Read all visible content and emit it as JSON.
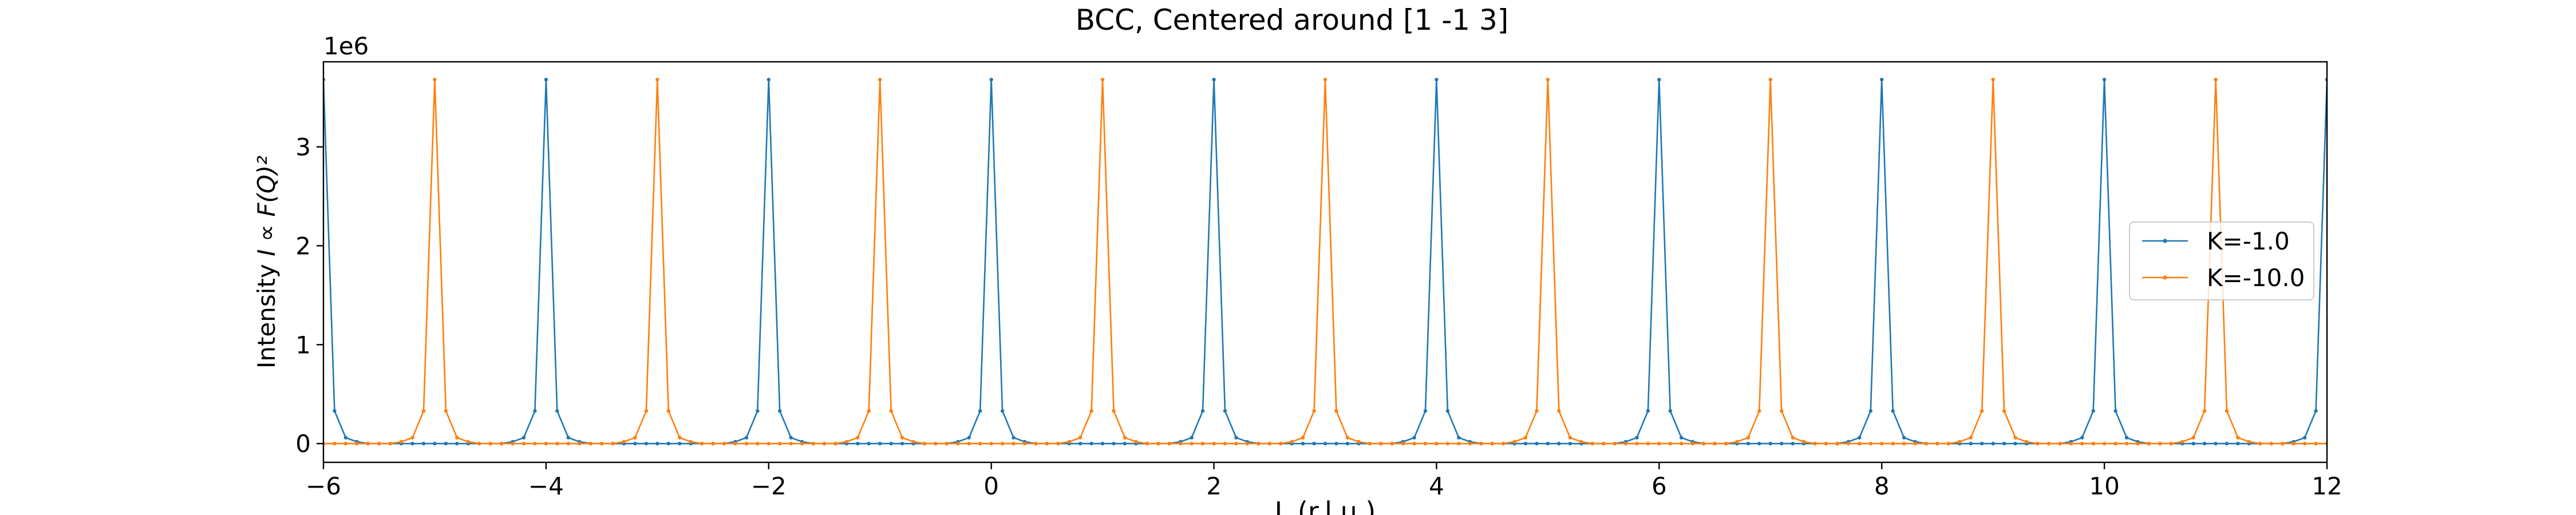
{
  "chart_data": {
    "type": "line",
    "title": "BCC, Centered around [1 -1 3]",
    "xlabel": "L (r.l.u.)",
    "ylabel_text": "Intensity ",
    "ylabel_math": "I ∝ F(Q)²",
    "y_offset_label": "1e6",
    "xlim": [
      -6,
      12
    ],
    "ylim": [
      -0.19,
      3.86
    ],
    "y_scale_factor": 1000000,
    "x_ticks": [
      -6,
      -4,
      -2,
      0,
      2,
      4,
      6,
      8,
      10,
      12
    ],
    "x_tick_labels": [
      "−6",
      "−4",
      "−2",
      "0",
      "2",
      "4",
      "6",
      "8",
      "10",
      "12"
    ],
    "y_ticks": [
      0,
      1,
      2,
      3
    ],
    "y_tick_labels": [
      "0",
      "1",
      "2",
      "3"
    ],
    "grid": false,
    "legend_position": "center-right",
    "peak_height": 3.68,
    "shoulder_height": 0.33,
    "step": 0.1,
    "series": [
      {
        "name": "K=-1.0",
        "color": "#1f77b4",
        "peaks_at": [
          -6,
          -4,
          -2,
          0,
          2,
          4,
          6,
          8,
          10,
          12
        ]
      },
      {
        "name": "K=-10.0",
        "color": "#ff7f0e",
        "peaks_at": [
          -5,
          -3,
          -1,
          1,
          3,
          5,
          7,
          9,
          11
        ]
      }
    ]
  }
}
